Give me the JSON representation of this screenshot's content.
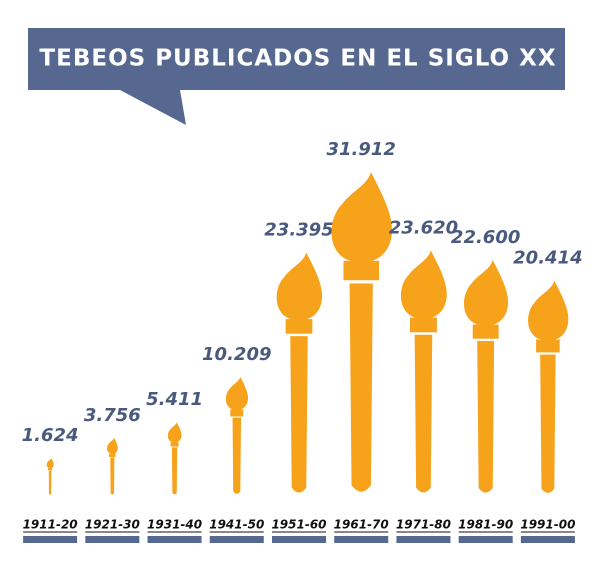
{
  "chart_data": {
    "type": "bar",
    "title": "TEBEOS PUBLICADOS EN EL SIGLO XX",
    "categories": [
      "1911-20",
      "1921-30",
      "1931-40",
      "1941-50",
      "1951-60",
      "1961-70",
      "1971-80",
      "1981-90",
      "1991-00"
    ],
    "values": [
      1624,
      3756,
      5411,
      10209,
      23395,
      31912,
      23620,
      22600,
      20414
    ],
    "value_labels": [
      "1.624",
      "3.756",
      "5.411",
      "10.209",
      "23.395",
      "31.912",
      "23.620",
      "22.600",
      "20.414"
    ],
    "color": "#f7a21b"
  }
}
